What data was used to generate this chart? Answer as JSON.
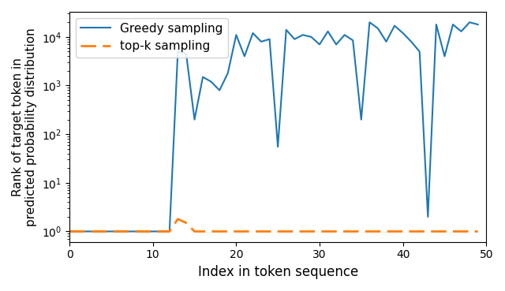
{
  "greedy_x": [
    0,
    1,
    2,
    3,
    4,
    5,
    6,
    7,
    8,
    9,
    10,
    11,
    12,
    13,
    14,
    15,
    16,
    17,
    18,
    19,
    20,
    21,
    22,
    23,
    24,
    25,
    26,
    27,
    28,
    29,
    30,
    31,
    32,
    33,
    34,
    35,
    36,
    37,
    38,
    39,
    40,
    41,
    42,
    43,
    44,
    45,
    46,
    47,
    48,
    49
  ],
  "greedy_y": [
    1,
    1,
    1,
    1,
    1,
    1,
    1,
    1,
    1,
    1,
    1,
    1,
    1,
    5000,
    4500,
    200,
    1500,
    1200,
    800,
    1800,
    11000,
    4000,
    12000,
    8000,
    9000,
    55,
    14000,
    9000,
    11000,
    10000,
    7000,
    13000,
    7000,
    11000,
    8500,
    200,
    20000,
    15000,
    8000,
    17000,
    12000,
    8000,
    5000,
    2,
    18000,
    4000,
    18000,
    13000,
    20000,
    18000
  ],
  "topk_x": [
    0,
    1,
    2,
    3,
    4,
    5,
    6,
    7,
    8,
    9,
    10,
    11,
    12,
    13,
    14,
    15,
    16,
    17,
    18,
    19,
    20,
    21,
    22,
    23,
    24,
    25,
    26,
    27,
    28,
    29,
    30,
    31,
    32,
    33,
    34,
    35,
    36,
    37,
    38,
    39,
    40,
    41,
    42,
    43,
    44,
    45,
    46,
    47,
    48,
    49
  ],
  "topk_y": [
    1,
    1,
    1,
    1,
    1,
    1,
    1,
    1,
    1,
    1,
    1,
    1,
    1,
    1.8,
    1.5,
    1,
    1,
    1,
    1,
    1,
    1,
    1,
    1,
    1,
    1,
    1,
    1,
    1,
    1,
    1,
    1,
    1,
    1,
    1,
    1,
    1,
    1,
    1,
    1,
    1,
    1,
    1,
    1,
    1,
    1,
    1,
    1,
    1,
    1,
    1
  ],
  "xlabel": "Index in token sequence",
  "ylabel": "Rank of target token in\npredicted probability distribution",
  "xlim": [
    0,
    50
  ],
  "greedy_color": "#1f77b4",
  "topk_color": "#ff7f0e",
  "greedy_label": "Greedy sampling",
  "topk_label": "top-k sampling",
  "figsize": [
    6.4,
    3.69
  ],
  "dpi": 100,
  "legend_fontsize": 11,
  "axis_fontsize": 12,
  "ylabel_fontsize": 11
}
